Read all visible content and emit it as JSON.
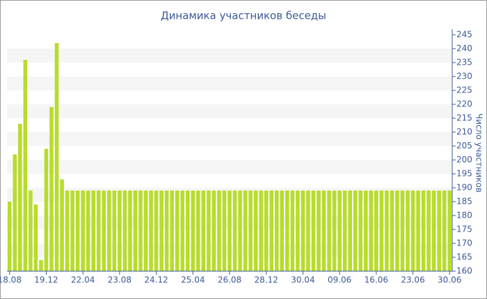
{
  "chart_data": {
    "type": "bar",
    "title": "Динамика участников беседы",
    "y_label": "Число участников",
    "categories": [
      "18.08",
      null,
      null,
      null,
      null,
      null,
      null,
      "19.12",
      null,
      null,
      null,
      null,
      null,
      null,
      "22.04",
      null,
      null,
      null,
      null,
      null,
      null,
      "23.08",
      null,
      null,
      null,
      null,
      null,
      null,
      "24.12",
      null,
      null,
      null,
      null,
      null,
      null,
      "25.04",
      null,
      null,
      null,
      null,
      null,
      null,
      "26.08",
      null,
      null,
      null,
      null,
      null,
      null,
      "28.12",
      null,
      null,
      null,
      null,
      null,
      null,
      "30.04",
      null,
      null,
      null,
      null,
      null,
      null,
      "09.06",
      null,
      null,
      null,
      null,
      null,
      null,
      "16.06",
      null,
      null,
      null,
      null,
      null,
      null,
      "23.06",
      null,
      null,
      null,
      null,
      null,
      null,
      "30.06"
    ],
    "values": [
      185,
      202,
      213,
      236,
      189,
      184,
      164,
      204,
      219,
      242,
      193,
      189,
      189,
      189,
      189,
      189,
      189,
      189,
      189,
      189,
      189,
      189,
      189,
      189,
      189,
      189,
      189,
      189,
      189,
      189,
      189,
      189,
      189,
      189,
      189,
      189,
      189,
      189,
      189,
      189,
      189,
      189,
      189,
      189,
      189,
      189,
      189,
      189,
      189,
      189,
      189,
      189,
      189,
      189,
      189,
      189,
      189,
      189,
      189,
      189,
      189,
      189,
      189,
      189,
      189,
      189,
      189,
      189,
      189,
      189,
      189,
      189,
      189,
      189,
      189,
      189,
      189,
      189,
      189,
      189,
      189,
      189,
      189,
      189,
      189
    ],
    "color": "#b8dc2c",
    "ylim": [
      160,
      245
    ],
    "yticks": [
      160,
      165,
      170,
      175,
      180,
      185,
      190,
      195,
      200,
      205,
      210,
      215,
      220,
      225,
      230,
      235,
      240,
      245
    ],
    "grid": "bands"
  }
}
